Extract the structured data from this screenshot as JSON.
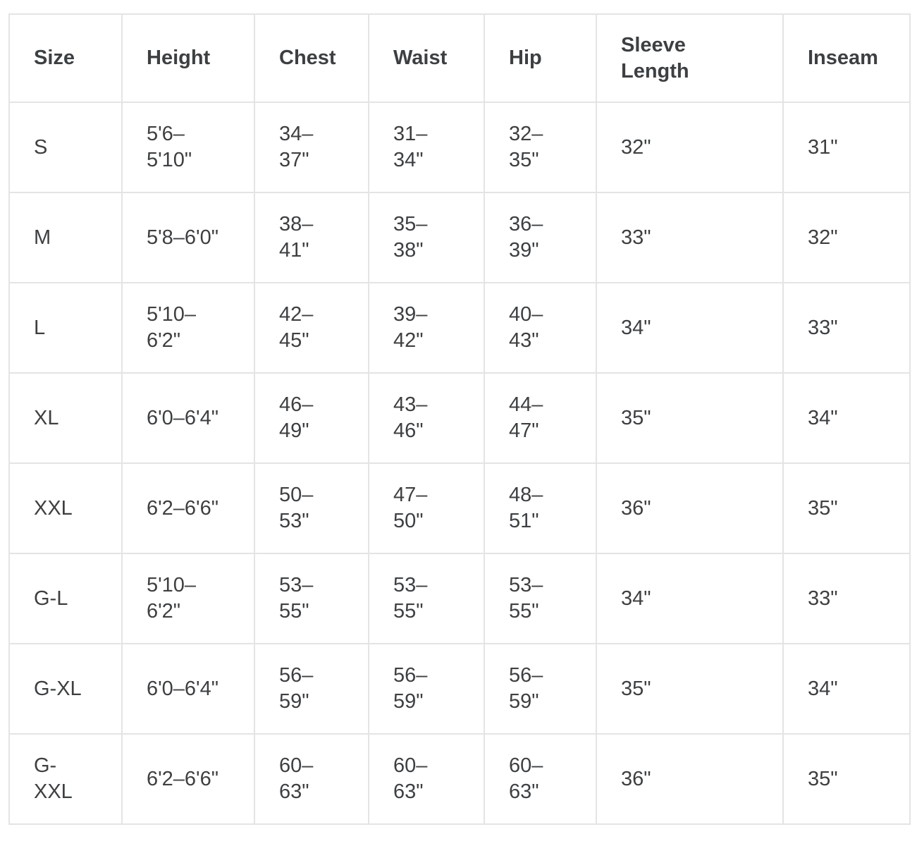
{
  "table": {
    "columns": [
      {
        "key": "size",
        "label": "Size"
      },
      {
        "key": "height",
        "label": "Height"
      },
      {
        "key": "chest",
        "label": "Chest"
      },
      {
        "key": "waist",
        "label": "Waist"
      },
      {
        "key": "hip",
        "label": "Hip"
      },
      {
        "key": "sleeve_length",
        "label": "Sleeve\nLength"
      },
      {
        "key": "inseam",
        "label": "Inseam"
      }
    ],
    "rows": [
      {
        "size": "S",
        "height": "5'6–\n5'10\"",
        "chest": "34–\n37\"",
        "waist": "31–\n34\"",
        "hip": "32–\n35\"",
        "sleeve_length": "32\"",
        "inseam": "31\""
      },
      {
        "size": "M",
        "height": "5'8–6'0\"",
        "chest": "38–\n41\"",
        "waist": "35–\n38\"",
        "hip": "36–\n39\"",
        "sleeve_length": "33\"",
        "inseam": "32\""
      },
      {
        "size": "L",
        "height": "5'10–\n6'2\"",
        "chest": "42–\n45\"",
        "waist": "39–\n42\"",
        "hip": "40–\n43\"",
        "sleeve_length": "34\"",
        "inseam": "33\""
      },
      {
        "size": "XL",
        "height": "6'0–6'4\"",
        "chest": "46–\n49\"",
        "waist": "43–\n46\"",
        "hip": "44–\n47\"",
        "sleeve_length": "35\"",
        "inseam": "34\""
      },
      {
        "size": "XXL",
        "height": "6'2–6'6\"",
        "chest": "50–\n53\"",
        "waist": "47–\n50\"",
        "hip": "48–\n51\"",
        "sleeve_length": "36\"",
        "inseam": "35\""
      },
      {
        "size": "G-L",
        "height": "5'10–\n6'2\"",
        "chest": "53–\n55\"",
        "waist": "53–\n55\"",
        "hip": "53–\n55\"",
        "sleeve_length": "34\"",
        "inseam": "33\""
      },
      {
        "size": "G-XL",
        "height": "6'0–6'4\"",
        "chest": "56–\n59\"",
        "waist": "56–\n59\"",
        "hip": "56–\n59\"",
        "sleeve_length": "35\"",
        "inseam": "34\""
      },
      {
        "size": "G-\nXXL",
        "height": "6'2–6'6\"",
        "chest": "60–\n63\"",
        "waist": "60–\n63\"",
        "hip": "60–\n63\"",
        "sleeve_length": "36\"",
        "inseam": "35\""
      }
    ]
  },
  "colors": {
    "text": "#3d4043",
    "border": "#e4e4e4",
    "background": "#ffffff"
  }
}
